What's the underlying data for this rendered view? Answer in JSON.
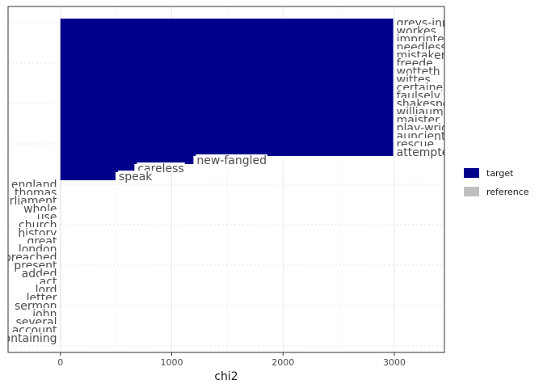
{
  "chart_data": {
    "type": "bar",
    "orientation": "horizontal",
    "xlabel": "chi2",
    "xlim": [
      -470,
      3450
    ],
    "xticks": [
      0,
      1000,
      2000,
      3000
    ],
    "grid": true,
    "legend_position": "right",
    "colors": {
      "target": "#00008b",
      "reference": "#bebebe"
    },
    "legend": [
      {
        "key": "target",
        "label": "target"
      },
      {
        "key": "reference",
        "label": "reference"
      }
    ],
    "bars": [
      {
        "label": "greys-inne",
        "value": 2990,
        "group": "target"
      },
      {
        "label": "workes",
        "value": 2990,
        "group": "target"
      },
      {
        "label": "imprinted",
        "value": 2990,
        "group": "target"
      },
      {
        "label": "needlesse",
        "value": 2990,
        "group": "target"
      },
      {
        "label": "mistaken",
        "value": 2990,
        "group": "target"
      },
      {
        "label": "freede",
        "value": 2990,
        "group": "target"
      },
      {
        "label": "wotteth",
        "value": 2990,
        "group": "target"
      },
      {
        "label": "wittes",
        "value": 2990,
        "group": "target"
      },
      {
        "label": "certainely",
        "value": 2990,
        "group": "target"
      },
      {
        "label": "faulsely",
        "value": 2990,
        "group": "target"
      },
      {
        "label": "shakespeare",
        "value": 2990,
        "group": "target"
      },
      {
        "label": "williaume",
        "value": 2990,
        "group": "target"
      },
      {
        "label": "maister",
        "value": 2990,
        "group": "target"
      },
      {
        "label": "play-wright",
        "value": 2990,
        "group": "target"
      },
      {
        "label": "auncient",
        "value": 2990,
        "group": "target"
      },
      {
        "label": "rescue",
        "value": 2990,
        "group": "target"
      },
      {
        "label": "attempted",
        "value": 2990,
        "group": "target"
      },
      {
        "label": "new-fangled",
        "value": 1195,
        "group": "target"
      },
      {
        "label": "careless",
        "value": 665,
        "group": "target"
      },
      {
        "label": "speak",
        "value": 495,
        "group": "target"
      },
      {
        "label": "england",
        "value": -2,
        "group": "reference"
      },
      {
        "label": "thomas",
        "value": -2,
        "group": "reference"
      },
      {
        "label": "parliament",
        "value": -2,
        "group": "reference"
      },
      {
        "label": "whole",
        "value": -2,
        "group": "reference"
      },
      {
        "label": "use",
        "value": -2,
        "group": "reference"
      },
      {
        "label": "church",
        "value": -2,
        "group": "reference"
      },
      {
        "label": "history",
        "value": -2,
        "group": "reference"
      },
      {
        "label": "great",
        "value": -2,
        "group": "reference"
      },
      {
        "label": "london",
        "value": -2,
        "group": "reference"
      },
      {
        "label": "preached",
        "value": -2,
        "group": "reference"
      },
      {
        "label": "present",
        "value": -2,
        "group": "reference"
      },
      {
        "label": "added",
        "value": -2,
        "group": "reference"
      },
      {
        "label": "act",
        "value": -2,
        "group": "reference"
      },
      {
        "label": "lord",
        "value": -2,
        "group": "reference"
      },
      {
        "label": "letter",
        "value": -2,
        "group": "reference"
      },
      {
        "label": "sermon",
        "value": -2,
        "group": "reference"
      },
      {
        "label": "john",
        "value": -2,
        "group": "reference"
      },
      {
        "label": "several",
        "value": -2,
        "group": "reference"
      },
      {
        "label": "account",
        "value": -2,
        "group": "reference"
      },
      {
        "label": "containing",
        "value": -2,
        "group": "reference"
      }
    ]
  }
}
